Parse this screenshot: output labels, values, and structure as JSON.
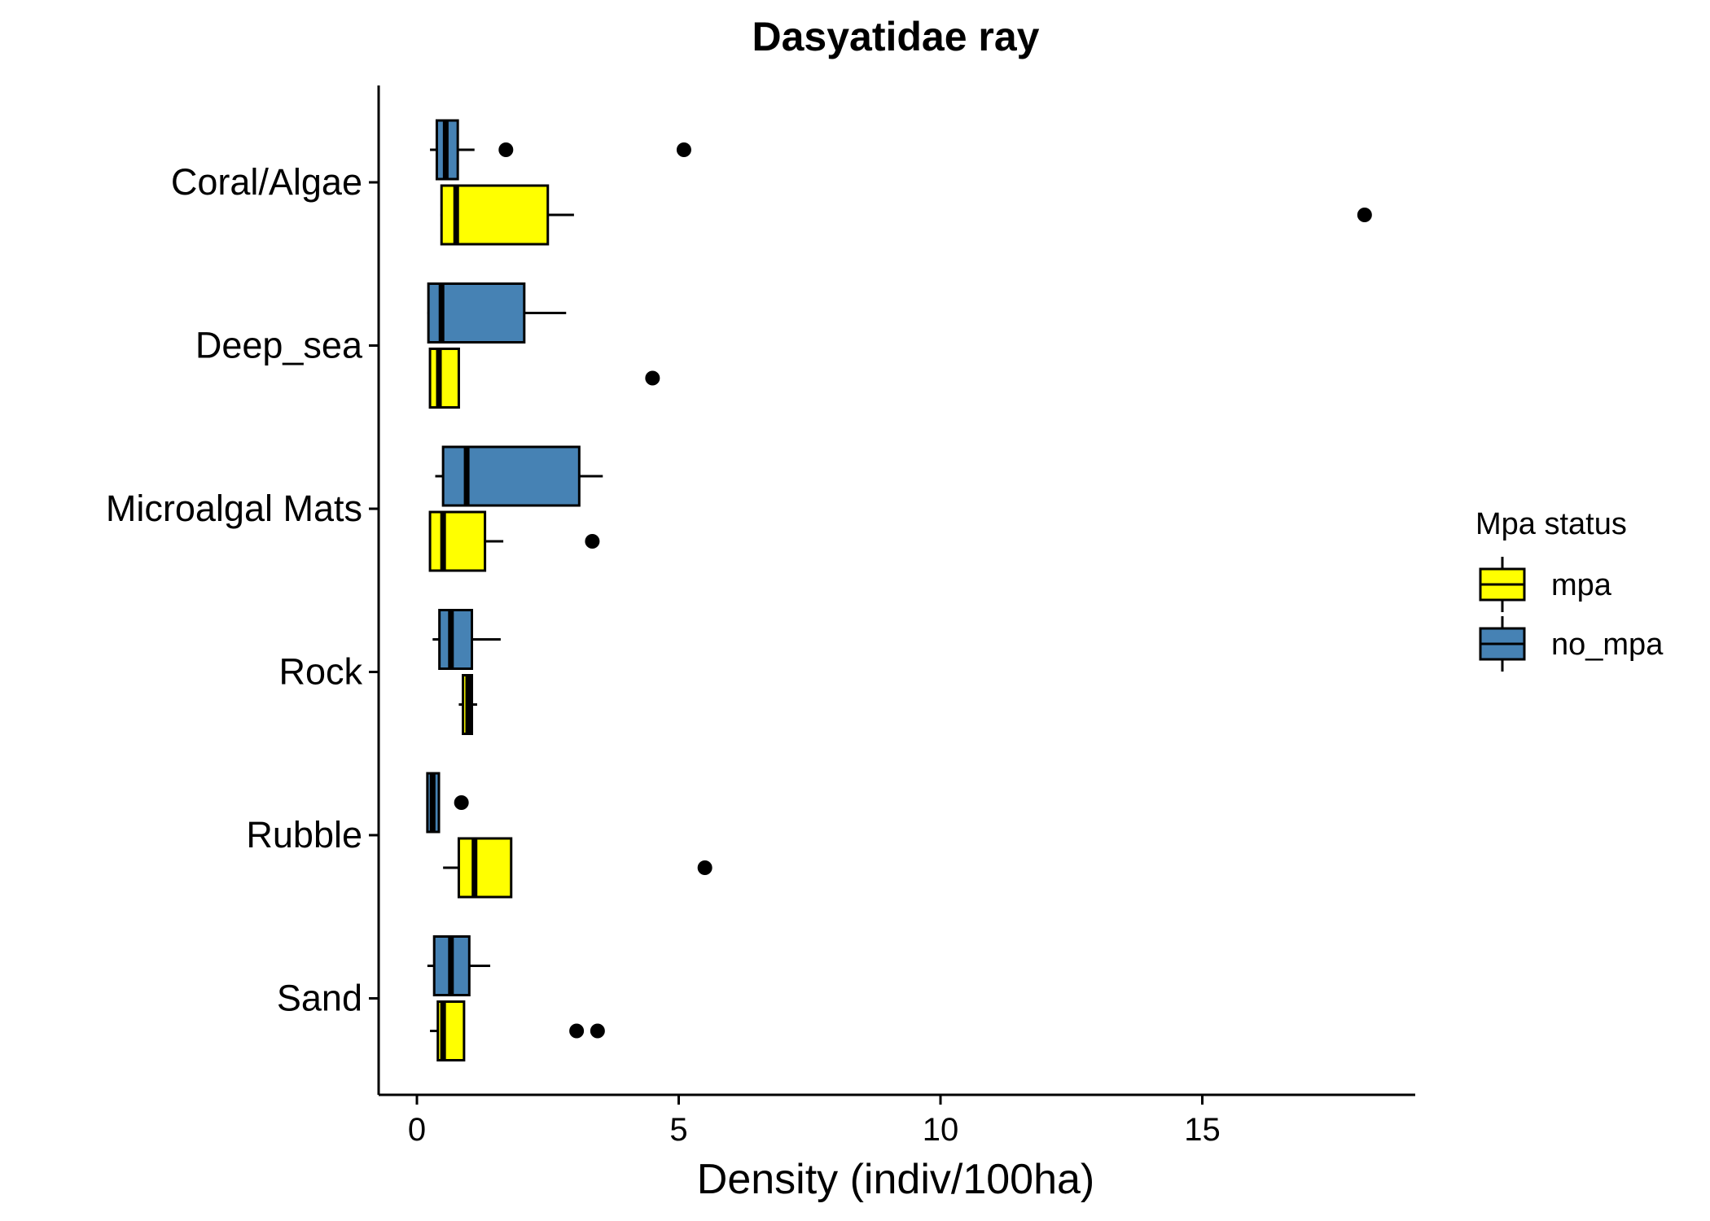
{
  "chart_data": {
    "type": "boxplot",
    "orientation": "horizontal",
    "title": "Dasyatidae ray",
    "xlabel": "Density (indiv/100ha)",
    "ylabel": "",
    "xlim": [
      -0.7,
      19.0
    ],
    "xticks": [
      0,
      5,
      10,
      15
    ],
    "grid": false,
    "legend": {
      "title": "Mpa status",
      "position": "right",
      "entries": [
        {
          "key": "mpa",
          "label": "mpa",
          "color": "#ffff00"
        },
        {
          "key": "no_mpa",
          "label": "no_mpa",
          "color": "#4682b4"
        }
      ]
    },
    "categories": [
      "Coral/Algae",
      "Deep_sea",
      "Microalgal Mats",
      "Rock",
      "Rubble",
      "Sand"
    ],
    "series": [
      {
        "name": "mpa",
        "color": "#ffff00",
        "boxes": [
          {
            "category": "Coral/Algae",
            "whisker_low": 0.45,
            "q1": 0.47,
            "median": 0.75,
            "q3": 2.5,
            "whisker_high": 3.0,
            "outliers": [
              18.1
            ]
          },
          {
            "category": "Deep_sea",
            "whisker_low": 0.25,
            "q1": 0.25,
            "median": 0.42,
            "q3": 0.8,
            "whisker_high": 0.8,
            "outliers": [
              4.5
            ]
          },
          {
            "category": "Microalgal Mats",
            "whisker_low": 0.25,
            "q1": 0.25,
            "median": 0.5,
            "q3": 1.3,
            "whisker_high": 1.65,
            "outliers": [
              3.35
            ]
          },
          {
            "category": "Rock",
            "whisker_low": 0.8,
            "q1": 0.88,
            "median": 0.98,
            "q3": 1.05,
            "whisker_high": 1.15,
            "outliers": []
          },
          {
            "category": "Rubble",
            "whisker_low": 0.5,
            "q1": 0.8,
            "median": 1.1,
            "q3": 1.8,
            "whisker_high": 1.8,
            "outliers": [
              5.5
            ]
          },
          {
            "category": "Sand",
            "whisker_low": 0.25,
            "q1": 0.4,
            "median": 0.5,
            "q3": 0.9,
            "whisker_high": 0.9,
            "outliers": [
              3.05,
              3.45
            ]
          }
        ]
      },
      {
        "name": "no_mpa",
        "color": "#4682b4",
        "boxes": [
          {
            "category": "Coral/Algae",
            "whisker_low": 0.25,
            "q1": 0.38,
            "median": 0.55,
            "q3": 0.78,
            "whisker_high": 1.1,
            "outliers": [
              1.7,
              5.1
            ]
          },
          {
            "category": "Deep_sea",
            "whisker_low": 0.2,
            "q1": 0.22,
            "median": 0.47,
            "q3": 2.05,
            "whisker_high": 2.85,
            "outliers": []
          },
          {
            "category": "Microalgal Mats",
            "whisker_low": 0.35,
            "q1": 0.5,
            "median": 0.95,
            "q3": 3.1,
            "whisker_high": 3.55,
            "outliers": []
          },
          {
            "category": "Rock",
            "whisker_low": 0.3,
            "q1": 0.43,
            "median": 0.65,
            "q3": 1.05,
            "whisker_high": 1.6,
            "outliers": []
          },
          {
            "category": "Rubble",
            "whisker_low": 0.18,
            "q1": 0.2,
            "median": 0.3,
            "q3": 0.42,
            "whisker_high": 0.42,
            "outliers": [
              0.85
            ]
          },
          {
            "category": "Sand",
            "whisker_low": 0.2,
            "q1": 0.33,
            "median": 0.65,
            "q3": 1.0,
            "whisker_high": 1.4,
            "outliers": []
          }
        ]
      }
    ]
  }
}
